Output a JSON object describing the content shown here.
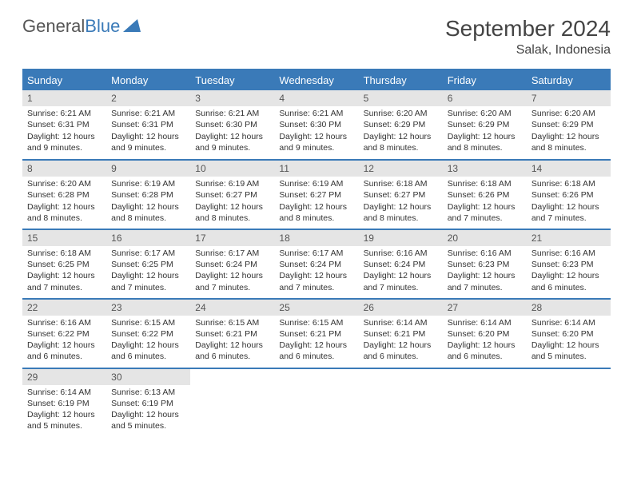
{
  "brand": {
    "name1": "General",
    "name2": "Blue"
  },
  "title": "September 2024",
  "location": "Salak, Indonesia",
  "colors": {
    "header_bg": "#3a7ab8",
    "header_fg": "#ffffff",
    "daynum_bg": "#e5e5e5",
    "row_sep": "#3a7ab8",
    "text": "#333333",
    "background": "#ffffff"
  },
  "typography": {
    "title_fontsize": 28,
    "location_fontsize": 16,
    "dayhead_fontsize": 13,
    "cell_fontsize": 10.5
  },
  "day_headers": [
    "Sunday",
    "Monday",
    "Tuesday",
    "Wednesday",
    "Thursday",
    "Friday",
    "Saturday"
  ],
  "weeks": [
    [
      {
        "n": "1",
        "sunrise": "6:21 AM",
        "sunset": "6:31 PM",
        "daylight": "12 hours and 9 minutes."
      },
      {
        "n": "2",
        "sunrise": "6:21 AM",
        "sunset": "6:31 PM",
        "daylight": "12 hours and 9 minutes."
      },
      {
        "n": "3",
        "sunrise": "6:21 AM",
        "sunset": "6:30 PM",
        "daylight": "12 hours and 9 minutes."
      },
      {
        "n": "4",
        "sunrise": "6:21 AM",
        "sunset": "6:30 PM",
        "daylight": "12 hours and 9 minutes."
      },
      {
        "n": "5",
        "sunrise": "6:20 AM",
        "sunset": "6:29 PM",
        "daylight": "12 hours and 8 minutes."
      },
      {
        "n": "6",
        "sunrise": "6:20 AM",
        "sunset": "6:29 PM",
        "daylight": "12 hours and 8 minutes."
      },
      {
        "n": "7",
        "sunrise": "6:20 AM",
        "sunset": "6:29 PM",
        "daylight": "12 hours and 8 minutes."
      }
    ],
    [
      {
        "n": "8",
        "sunrise": "6:20 AM",
        "sunset": "6:28 PM",
        "daylight": "12 hours and 8 minutes."
      },
      {
        "n": "9",
        "sunrise": "6:19 AM",
        "sunset": "6:28 PM",
        "daylight": "12 hours and 8 minutes."
      },
      {
        "n": "10",
        "sunrise": "6:19 AM",
        "sunset": "6:27 PM",
        "daylight": "12 hours and 8 minutes."
      },
      {
        "n": "11",
        "sunrise": "6:19 AM",
        "sunset": "6:27 PM",
        "daylight": "12 hours and 8 minutes."
      },
      {
        "n": "12",
        "sunrise": "6:18 AM",
        "sunset": "6:27 PM",
        "daylight": "12 hours and 8 minutes."
      },
      {
        "n": "13",
        "sunrise": "6:18 AM",
        "sunset": "6:26 PM",
        "daylight": "12 hours and 7 minutes."
      },
      {
        "n": "14",
        "sunrise": "6:18 AM",
        "sunset": "6:26 PM",
        "daylight": "12 hours and 7 minutes."
      }
    ],
    [
      {
        "n": "15",
        "sunrise": "6:18 AM",
        "sunset": "6:25 PM",
        "daylight": "12 hours and 7 minutes."
      },
      {
        "n": "16",
        "sunrise": "6:17 AM",
        "sunset": "6:25 PM",
        "daylight": "12 hours and 7 minutes."
      },
      {
        "n": "17",
        "sunrise": "6:17 AM",
        "sunset": "6:24 PM",
        "daylight": "12 hours and 7 minutes."
      },
      {
        "n": "18",
        "sunrise": "6:17 AM",
        "sunset": "6:24 PM",
        "daylight": "12 hours and 7 minutes."
      },
      {
        "n": "19",
        "sunrise": "6:16 AM",
        "sunset": "6:24 PM",
        "daylight": "12 hours and 7 minutes."
      },
      {
        "n": "20",
        "sunrise": "6:16 AM",
        "sunset": "6:23 PM",
        "daylight": "12 hours and 7 minutes."
      },
      {
        "n": "21",
        "sunrise": "6:16 AM",
        "sunset": "6:23 PM",
        "daylight": "12 hours and 6 minutes."
      }
    ],
    [
      {
        "n": "22",
        "sunrise": "6:16 AM",
        "sunset": "6:22 PM",
        "daylight": "12 hours and 6 minutes."
      },
      {
        "n": "23",
        "sunrise": "6:15 AM",
        "sunset": "6:22 PM",
        "daylight": "12 hours and 6 minutes."
      },
      {
        "n": "24",
        "sunrise": "6:15 AM",
        "sunset": "6:21 PM",
        "daylight": "12 hours and 6 minutes."
      },
      {
        "n": "25",
        "sunrise": "6:15 AM",
        "sunset": "6:21 PM",
        "daylight": "12 hours and 6 minutes."
      },
      {
        "n": "26",
        "sunrise": "6:14 AM",
        "sunset": "6:21 PM",
        "daylight": "12 hours and 6 minutes."
      },
      {
        "n": "27",
        "sunrise": "6:14 AM",
        "sunset": "6:20 PM",
        "daylight": "12 hours and 6 minutes."
      },
      {
        "n": "28",
        "sunrise": "6:14 AM",
        "sunset": "6:20 PM",
        "daylight": "12 hours and 5 minutes."
      }
    ],
    [
      {
        "n": "29",
        "sunrise": "6:14 AM",
        "sunset": "6:19 PM",
        "daylight": "12 hours and 5 minutes."
      },
      {
        "n": "30",
        "sunrise": "6:13 AM",
        "sunset": "6:19 PM",
        "daylight": "12 hours and 5 minutes."
      },
      null,
      null,
      null,
      null,
      null
    ]
  ],
  "labels": {
    "sunrise": "Sunrise:",
    "sunset": "Sunset:",
    "daylight": "Daylight:"
  }
}
